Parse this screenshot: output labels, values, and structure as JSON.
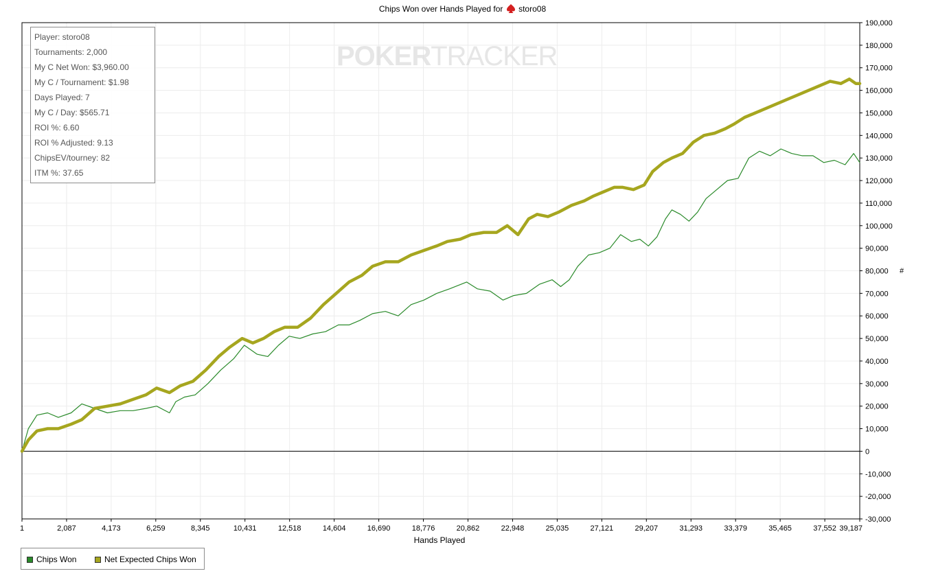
{
  "title": {
    "prefix": "Chips Won over Hands Played for",
    "player": "storo08",
    "icon": "spade-icon"
  },
  "watermark": {
    "part1": "POKER",
    "part2": "TRACKER"
  },
  "stats": [
    "Player: storo08",
    "Tournaments: 2,000",
    "My C Net Won: $3,960.00",
    "My C / Tournament: $1.98",
    "Days Played: 7",
    "My C / Day: $565.71",
    "ROI %: 6.60",
    "ROI % Adjusted: 9.13",
    "ChipsEV/tourney: 82",
    "ITM %: 37.65"
  ],
  "legend": [
    {
      "label": "Chips Won",
      "color": "#2a8a2a"
    },
    {
      "label": "Net Expected Chips Won",
      "color": "#a6a61f"
    }
  ],
  "chart_data": {
    "type": "line",
    "xlabel": "Hands Played",
    "ylabel": "#",
    "xlim": [
      1,
      39187
    ],
    "ylim": [
      -30000,
      190000
    ],
    "x_ticks": [
      "1",
      "2,087",
      "4,173",
      "6,259",
      "8,345",
      "10,431",
      "12,518",
      "14,604",
      "16,690",
      "18,776",
      "20,862",
      "22,948",
      "25,035",
      "27,121",
      "29,207",
      "31,293",
      "33,379",
      "35,465",
      "37,552",
      "39,187"
    ],
    "x_tick_values": [
      1,
      2087,
      4173,
      6259,
      8345,
      10431,
      12518,
      14604,
      16690,
      18776,
      20862,
      22948,
      25035,
      27121,
      29207,
      31293,
      33379,
      35465,
      37552,
      39187
    ],
    "y_ticks": [
      "190,000",
      "180,000",
      "170,000",
      "160,000",
      "150,000",
      "140,000",
      "130,000",
      "120,000",
      "110,000",
      "100,000",
      "90,000",
      "80,000",
      "70,000",
      "60,000",
      "50,000",
      "40,000",
      "30,000",
      "20,000",
      "10,000",
      "0",
      "-10,000",
      "-20,000",
      "-30,000"
    ],
    "y_tick_values": [
      190000,
      180000,
      170000,
      160000,
      150000,
      140000,
      130000,
      120000,
      110000,
      100000,
      90000,
      80000,
      70000,
      60000,
      50000,
      40000,
      30000,
      20000,
      10000,
      0,
      -10000,
      -20000,
      -30000
    ],
    "grid": true,
    "legend_position": "bottom-left",
    "series": [
      {
        "name": "Chips Won",
        "color": "#2a8a2a",
        "x": [
          1,
          300,
          700,
          1200,
          1700,
          2300,
          2800,
          3400,
          4000,
          4600,
          5200,
          5800,
          6300,
          6900,
          7200,
          7600,
          8100,
          8700,
          9300,
          9900,
          10400,
          11000,
          11500,
          12000,
          12500,
          13000,
          13600,
          14200,
          14800,
          15300,
          15800,
          16400,
          17000,
          17600,
          18200,
          18800,
          19400,
          20000,
          20800,
          21300,
          21900,
          22500,
          23000,
          23600,
          24200,
          24800,
          25200,
          25600,
          26000,
          26500,
          27000,
          27500,
          28000,
          28500,
          28900,
          29300,
          29700,
          30100,
          30400,
          30800,
          31200,
          31600,
          32000,
          32500,
          33000,
          33500,
          34000,
          34500,
          35000,
          35500,
          36000,
          36500,
          37000,
          37500,
          38000,
          38500,
          38900,
          39187
        ],
        "y": [
          0,
          10000,
          16000,
          17000,
          15000,
          17000,
          21000,
          19000,
          17000,
          18000,
          18000,
          19000,
          20000,
          17000,
          22000,
          24000,
          25000,
          30000,
          36000,
          41000,
          47000,
          43000,
          42000,
          47000,
          51000,
          50000,
          52000,
          53000,
          56000,
          56000,
          58000,
          61000,
          62000,
          60000,
          65000,
          67000,
          70000,
          72000,
          75000,
          72000,
          71000,
          67000,
          69000,
          70000,
          74000,
          76000,
          73000,
          76000,
          82000,
          87000,
          88000,
          90000,
          96000,
          93000,
          94000,
          91000,
          95000,
          103000,
          107000,
          105000,
          102000,
          106000,
          112000,
          116000,
          120000,
          121000,
          130000,
          133000,
          131000,
          134000,
          132000,
          131000,
          131000,
          128000,
          129000,
          127000,
          132000,
          128000
        ]
      },
      {
        "name": "Net Expected Chips Won",
        "color": "#a6a61f",
        "x": [
          1,
          300,
          700,
          1200,
          1700,
          2300,
          2800,
          3400,
          4000,
          4600,
          5200,
          5800,
          6300,
          6900,
          7400,
          8000,
          8600,
          9200,
          9700,
          10300,
          10800,
          11300,
          11800,
          12300,
          12900,
          13500,
          14100,
          14700,
          15300,
          15900,
          16400,
          17000,
          17600,
          18200,
          18800,
          19400,
          19900,
          20500,
          21000,
          21600,
          22200,
          22700,
          23200,
          23700,
          24100,
          24600,
          25100,
          25700,
          26300,
          26700,
          27200,
          27700,
          28100,
          28600,
          29100,
          29500,
          30000,
          30400,
          30900,
          31400,
          31900,
          32400,
          32900,
          33300,
          33800,
          34300,
          34800,
          35300,
          35800,
          36300,
          36800,
          37300,
          37800,
          38300,
          38700,
          39000,
          39187
        ],
        "y": [
          0,
          5000,
          9000,
          10000,
          10000,
          12000,
          14000,
          19000,
          20000,
          21000,
          23000,
          25000,
          28000,
          26000,
          29000,
          31000,
          36000,
          42000,
          46000,
          50000,
          48000,
          50000,
          53000,
          55000,
          55000,
          59000,
          65000,
          70000,
          75000,
          78000,
          82000,
          84000,
          84000,
          87000,
          89000,
          91000,
          93000,
          94000,
          96000,
          97000,
          97000,
          100000,
          96000,
          103000,
          105000,
          104000,
          106000,
          109000,
          111000,
          113000,
          115000,
          117000,
          117000,
          116000,
          118000,
          124000,
          128000,
          130000,
          132000,
          137000,
          140000,
          141000,
          143000,
          145000,
          148000,
          150000,
          152000,
          154000,
          156000,
          158000,
          160000,
          162000,
          164000,
          163000,
          165000,
          163000,
          163000
        ]
      }
    ]
  }
}
